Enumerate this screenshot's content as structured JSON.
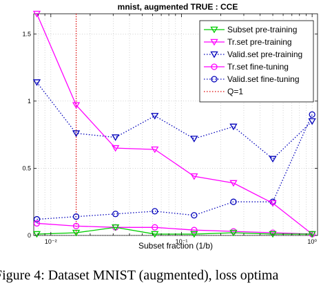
{
  "caption": "Figure 4:  Dataset MNIST (augmented), loss optima",
  "chart_data": {
    "type": "line",
    "title": "mnist, augmented TRUE : CCE",
    "xlabel": "Subset fraction (1/b)",
    "ylabel": "",
    "xscale": "log",
    "xlim": [
      0.0074,
      1.1
    ],
    "ylim": [
      0,
      1.65
    ],
    "yticks": [
      0,
      0.5,
      1,
      1.5
    ],
    "ytick_labels": [
      "0",
      "0.5",
      "1",
      "1.5"
    ],
    "xticks": [
      0.01,
      0.1,
      1
    ],
    "xtick_labels": [
      "10⁻²",
      "10⁻¹",
      "10⁰"
    ],
    "grid": true,
    "legend_position": "top-right",
    "x": [
      0.0078125,
      0.015625,
      0.03125,
      0.0625,
      0.125,
      0.25,
      0.5,
      1
    ],
    "series": [
      {
        "name": "Subset pre-training",
        "color": "#00cc00",
        "marker": "triangle-down",
        "line": "solid",
        "values": [
          0.01,
          0.02,
          0.06,
          0.01,
          0.01,
          0.02,
          0.01,
          0.01
        ]
      },
      {
        "name": "Tr.set pre-training",
        "color": "#ff00ff",
        "marker": "triangle-down",
        "line": "solid",
        "values": [
          1.65,
          0.97,
          0.65,
          0.64,
          0.44,
          0.39,
          0.24,
          0.01
        ]
      },
      {
        "name": "Valid.set pre-training",
        "color": "#0000bb",
        "marker": "triangle-down",
        "line": "dotted",
        "values": [
          1.14,
          0.76,
          0.73,
          0.89,
          0.72,
          0.81,
          0.57,
          0.85
        ]
      },
      {
        "name": "Tr.set fine-tuning",
        "color": "#ff00ff",
        "marker": "circle",
        "line": "solid",
        "values": [
          0.09,
          0.07,
          0.06,
          0.06,
          0.04,
          0.03,
          0.02,
          0.01
        ]
      },
      {
        "name": "Valid.set fine-tuning",
        "color": "#0000bb",
        "marker": "circle",
        "line": "dotted",
        "values": [
          0.12,
          0.14,
          0.16,
          0.18,
          0.15,
          0.25,
          0.25,
          0.9
        ]
      }
    ],
    "vline": {
      "name": "Q=1",
      "x": 0.015625,
      "color": "#dd0000",
      "line": "dotted"
    }
  }
}
